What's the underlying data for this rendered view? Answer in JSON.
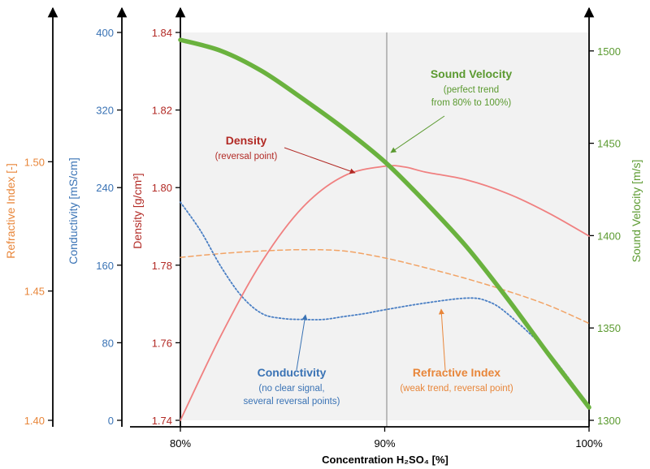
{
  "chart_data": {
    "type": "line",
    "xlabel": "Concentration  H₂SO₄ [%]",
    "x_ticks": [
      "80%",
      "90%",
      "100%"
    ],
    "xlim": [
      80,
      100
    ],
    "axes": {
      "refractive": {
        "label": "Refractive Index [-]",
        "ylim": [
          1.4,
          1.55
        ],
        "ticks": [
          "1.40",
          "1.45",
          "1.50"
        ],
        "color": "#e8863a"
      },
      "conductivity": {
        "label": "Conductivity  [mS/cm]",
        "ylim": [
          0,
          400
        ],
        "ticks": [
          "0",
          "80",
          "160",
          "240",
          "320",
          "400"
        ],
        "color": "#3a73b5"
      },
      "density": {
        "label": "Density [g/cm³]",
        "ylim": [
          1.74,
          1.84
        ],
        "ticks": [
          "1.74",
          "1.76",
          "1.78",
          "1.80",
          "1.82",
          "1.84"
        ],
        "color": "#b22a25"
      },
      "sound": {
        "label": "Sound Velocity [m/s]",
        "ylim": [
          1300,
          1510
        ],
        "ticks": [
          "1300",
          "1350",
          "1400",
          "1450",
          "1500"
        ],
        "color": "#5b9a30"
      }
    },
    "series": [
      {
        "name": "Sound Velocity",
        "axis": "sound",
        "color": "#6ab23e",
        "x": [
          80,
          82,
          84,
          86,
          88,
          90,
          92,
          94,
          96,
          98,
          100
        ],
        "y": [
          1506,
          1500,
          1489,
          1474,
          1458,
          1440,
          1418,
          1394,
          1366,
          1336,
          1307
        ]
      },
      {
        "name": "Density",
        "axis": "density",
        "color": "#f08080",
        "x": [
          80,
          82,
          84,
          86,
          88,
          90,
          91,
          92,
          94,
          96,
          98,
          100
        ],
        "y": [
          1.74,
          1.762,
          1.781,
          1.795,
          1.803,
          1.8055,
          1.8053,
          1.804,
          1.802,
          1.7985,
          1.7935,
          1.7875
        ]
      },
      {
        "name": "Conductivity",
        "axis": "conductivity",
        "color": "#4a7fc4",
        "x": [
          80,
          81,
          82,
          83,
          84,
          85,
          86,
          87,
          88,
          89,
          90,
          92,
          94,
          95,
          96,
          98,
          100
        ],
        "y": [
          225,
          195,
          158,
          128,
          110,
          105,
          104,
          104,
          107,
          110,
          114,
          121,
          126,
          123,
          110,
          70,
          15
        ]
      },
      {
        "name": "Refractive Index",
        "axis": "refractive",
        "color": "#f2a365",
        "x": [
          80,
          82,
          84,
          86,
          88,
          90,
          92,
          94,
          96,
          98,
          100
        ],
        "y": [
          1.463,
          1.4645,
          1.4655,
          1.466,
          1.4655,
          1.4628,
          1.459,
          1.4548,
          1.45,
          1.4445,
          1.4375
        ]
      }
    ],
    "annotations": {
      "sound": {
        "title": "Sound Velocity",
        "lines": [
          "(perfect trend",
          "from 80% to 100%)"
        ],
        "color": "#5b9a30"
      },
      "density": {
        "title": "Density",
        "lines": [
          "(reversal point)"
        ],
        "color": "#b22a25"
      },
      "conductivity": {
        "title": "Conductivity",
        "lines": [
          "(no clear signal,",
          "several reversal points)"
        ],
        "color": "#3a73b5"
      },
      "refractive": {
        "title": "Refractive Index",
        "lines": [
          "(weak trend, reversal point)"
        ],
        "color": "#e8863a"
      }
    },
    "grid": false,
    "reference_line_x": 90
  }
}
